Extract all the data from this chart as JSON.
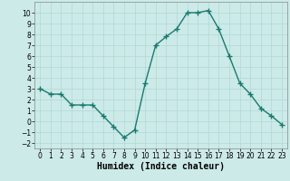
{
  "x": [
    0,
    1,
    2,
    3,
    4,
    5,
    6,
    7,
    8,
    9,
    10,
    11,
    12,
    13,
    14,
    15,
    16,
    17,
    18,
    19,
    20,
    21,
    22,
    23
  ],
  "y": [
    3,
    2.5,
    2.5,
    1.5,
    1.5,
    1.5,
    0.5,
    -0.5,
    -1.5,
    -0.8,
    3.5,
    7,
    7.8,
    8.5,
    10,
    10,
    10.2,
    8.5,
    6,
    3.5,
    2.5,
    1.2,
    0.5,
    -0.3
  ],
  "line_color": "#1a7a6e",
  "marker": "+",
  "marker_size": 4,
  "marker_lw": 1.0,
  "bg_color": "#cceae8",
  "grid_color": "#b0d8d6",
  "xlabel": "Humidex (Indice chaleur)",
  "xlabel_fontsize": 7,
  "ylim": [
    -2.5,
    11
  ],
  "xlim": [
    -0.5,
    23.5
  ],
  "yticks": [
    -2,
    -1,
    0,
    1,
    2,
    3,
    4,
    5,
    6,
    7,
    8,
    9,
    10
  ],
  "xticks": [
    0,
    1,
    2,
    3,
    4,
    5,
    6,
    7,
    8,
    9,
    10,
    11,
    12,
    13,
    14,
    15,
    16,
    17,
    18,
    19,
    20,
    21,
    22,
    23
  ],
  "tick_fontsize": 5.5,
  "line_width": 1.0
}
